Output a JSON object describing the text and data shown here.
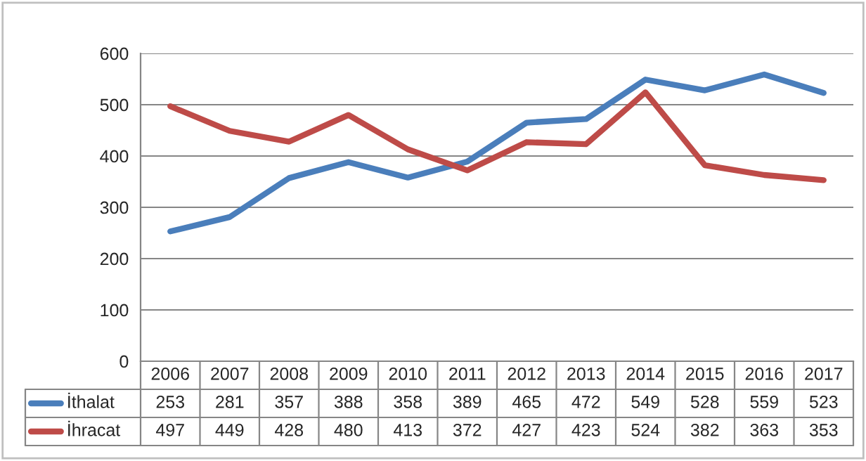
{
  "chart_data": {
    "type": "line",
    "categories": [
      "2006",
      "2007",
      "2008",
      "2009",
      "2010",
      "2011",
      "2012",
      "2013",
      "2014",
      "2015",
      "2016",
      "2017"
    ],
    "series": [
      {
        "name": "İthalat",
        "color": "#4a7ebb",
        "values": [
          253,
          281,
          357,
          388,
          358,
          389,
          465,
          472,
          549,
          528,
          559,
          523
        ]
      },
      {
        "name": "İhracat",
        "color": "#be4b48",
        "values": [
          497,
          449,
          428,
          480,
          413,
          372,
          427,
          423,
          524,
          382,
          363,
          353
        ]
      }
    ],
    "ylim": [
      0,
      600
    ],
    "yticks": [
      0,
      100,
      200,
      300,
      400,
      500,
      600
    ],
    "grid": "y",
    "legend": "bottom",
    "data_labels": true,
    "marker": "none",
    "line_style": "solid"
  }
}
